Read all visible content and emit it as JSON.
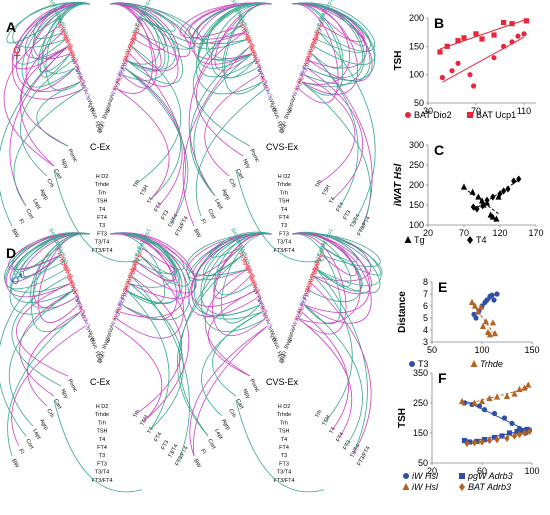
{
  "colors": {
    "teal": "#3aa88f",
    "magenta": "#cf3fc4",
    "red": "#e8253a",
    "purple": "#6a3fc8",
    "blue": "#2d4fa8",
    "orange_brown": "#b4621f",
    "female_symbol": "#d8253a",
    "male_symbol": "#2a63c8",
    "gray_text": "#333333"
  },
  "panels": {
    "A": {
      "letter": "A",
      "symbol": "♀",
      "left_caption": "C-Ex",
      "right_caption": "CVS-Ex"
    },
    "D": {
      "letter": "D",
      "symbol": "♂",
      "left_caption": "C-Ex",
      "right_caption": "CVS-Ex"
    }
  },
  "network_labels": {
    "right_arm": [
      "BATUcp1",
      "BAT Ar3",
      "BAT D2",
      "pgW Hsl",
      "pgW Ar3",
      "sW Ppar",
      "sW Ar3",
      "sW Hsl",
      "iW Ppar",
      "iW Ar3",
      "iW Hsl",
      "iW Ar3",
      "sW",
      "gW",
      "BWc",
      "Fl",
      "Dist"
    ],
    "left_arm": [
      "Pomc",
      "Npy",
      "Cart",
      "Crh",
      "Agrp",
      "Lept",
      "Cort",
      "Fl",
      "BW"
    ],
    "center_column": [
      "H D2",
      "Trhde",
      "Trh",
      "TSH",
      "T4",
      "FT4",
      "T3",
      "FT3",
      "T3/T4",
      "FT3/FT4"
    ],
    "right_stubs": [
      "Trh",
      "TSH",
      "T4",
      "FT4",
      "FT3",
      "T3/T4",
      "FT3/FT4"
    ]
  },
  "chart_data": [
    {
      "panel": "B",
      "type": "scatter",
      "xlabel": "",
      "ylabel": "TSH",
      "xlim": [
        30,
        120
      ],
      "ylim": [
        50,
        200
      ],
      "xticks": [
        30,
        70,
        110
      ],
      "yticks": [
        50,
        100,
        150,
        200
      ],
      "series": [
        {
          "name": "BAT Dio2",
          "marker": "circle",
          "color": "#e8253a",
          "points": [
            [
              42,
              95
            ],
            [
              50,
              107
            ],
            [
              55,
              120
            ],
            [
              65,
              100
            ],
            [
              68,
              80
            ],
            [
              85,
              130
            ],
            [
              93,
              150
            ],
            [
              100,
              158
            ],
            [
              105,
              168
            ],
            [
              110,
              172
            ]
          ]
        },
        {
          "name": "BAT Ucp1",
          "marker": "square",
          "color": "#e8253a",
          "points": [
            [
              40,
              140
            ],
            [
              46,
              150
            ],
            [
              55,
              160
            ],
            [
              60,
              165
            ],
            [
              70,
              172
            ],
            [
              75,
              163
            ],
            [
              85,
              170
            ],
            [
              93,
              192
            ],
            [
              100,
              190
            ],
            [
              112,
              195
            ]
          ]
        }
      ],
      "legend": [
        "BAT Dio2",
        "BAT Ucp1"
      ]
    },
    {
      "panel": "C",
      "type": "scatter",
      "xlabel": "",
      "ylabel": "iWAT Hsl",
      "xlim": [
        20,
        170
      ],
      "ylim": [
        100,
        300
      ],
      "xticks": [
        20,
        70,
        120,
        170
      ],
      "yticks": [
        100,
        150,
        200,
        250,
        300
      ],
      "series": [
        {
          "name": "Tg",
          "marker": "triangle",
          "color": "#000000",
          "points": [
            [
              70,
              195
            ],
            [
              82,
              182
            ],
            [
              90,
              170
            ],
            [
              95,
              160
            ],
            [
              97,
              150
            ],
            [
              102,
              155
            ],
            [
              107,
              125
            ],
            [
              110,
              120
            ],
            [
              115,
              115
            ],
            [
              118,
              170
            ]
          ]
        },
        {
          "name": "T4",
          "marker": "diamond",
          "color": "#000000",
          "points": [
            [
              83,
              145
            ],
            [
              88,
              140
            ],
            [
              96,
              148
            ],
            [
              102,
              162
            ],
            [
              110,
              170
            ],
            [
              120,
              178
            ],
            [
              125,
              185
            ],
            [
              131,
              190
            ],
            [
              139,
              210
            ],
            [
              146,
              215
            ]
          ]
        }
      ],
      "legend": [
        "Tg",
        "T4"
      ]
    },
    {
      "panel": "E",
      "type": "scatter",
      "xlabel": "",
      "ylabel": "Distance",
      "xlim": [
        50,
        150
      ],
      "ylim": [
        3,
        8
      ],
      "xticks": [
        50,
        100,
        150
      ],
      "yticks": [
        3,
        4,
        5,
        6,
        7,
        8
      ],
      "series": [
        {
          "name": "T3",
          "marker": "circle",
          "color": "#2d4fa8",
          "points": [
            [
              92,
              5.3
            ],
            [
              94,
              5.0
            ],
            [
              97,
              5.6
            ],
            [
              100,
              6.0
            ],
            [
              103,
              6.3
            ],
            [
              105,
              6.5
            ],
            [
              108,
              6.8
            ],
            [
              110,
              6.9
            ],
            [
              112,
              6.5
            ],
            [
              115,
              7.0
            ]
          ]
        },
        {
          "name": "Trhde",
          "marker": "triangle",
          "color": "#b4621f",
          "points": [
            [
              90,
              6.3
            ],
            [
              93,
              6.0
            ],
            [
              96,
              5.5
            ],
            [
              99,
              5.9
            ],
            [
              101,
              4.3
            ],
            [
              104,
              4.7
            ],
            [
              106,
              3.8
            ],
            [
              108,
              3.6
            ],
            [
              111,
              4.6
            ],
            [
              113,
              3.7
            ]
          ]
        }
      ],
      "legend": [
        "T3",
        "Trhde"
      ]
    },
    {
      "panel": "F",
      "type": "scatter",
      "xlabel": "",
      "ylabel": "TSH",
      "xlim": [
        20,
        100
      ],
      "ylim": [
        50,
        350
      ],
      "xticks": [
        20,
        60,
        100
      ],
      "yticks": [
        50,
        150,
        250,
        350
      ],
      "series": [
        {
          "name": "iW Hsl",
          "marker": "circle",
          "color": "#2d4fa8",
          "points": [
            [
              46,
              250
            ],
            [
              52,
              245
            ],
            [
              58,
              240
            ],
            [
              62,
              228
            ],
            [
              70,
              215
            ],
            [
              78,
              200
            ],
            [
              84,
              182
            ],
            [
              90,
              165
            ],
            [
              95,
              150
            ],
            [
              98,
              160
            ]
          ]
        },
        {
          "name": "pgW Adrb3",
          "marker": "square",
          "color": "#2d4fa8",
          "points": [
            [
              46,
              125
            ],
            [
              50,
              120
            ],
            [
              56,
              122
            ],
            [
              62,
              128
            ],
            [
              70,
              135
            ],
            [
              76,
              140
            ],
            [
              82,
              150
            ],
            [
              88,
              155
            ],
            [
              92,
              158
            ],
            [
              96,
              162
            ]
          ]
        },
        {
          "name": "iW Hsl",
          "marker": "triangle",
          "color": "#b4621f",
          "points": [
            [
              44,
              255
            ],
            [
              54,
              250
            ],
            [
              60,
              255
            ],
            [
              66,
              265
            ],
            [
              72,
              270
            ],
            [
              80,
              272
            ],
            [
              86,
              280
            ],
            [
              90,
              295
            ],
            [
              94,
              300
            ],
            [
              97,
              310
            ]
          ]
        },
        {
          "name": "BAT Adrb3",
          "marker": "diamond",
          "color": "#b4621f",
          "points": [
            [
              48,
              115
            ],
            [
              54,
              118
            ],
            [
              60,
              120
            ],
            [
              66,
              125
            ],
            [
              72,
              128
            ],
            [
              80,
              132
            ],
            [
              86,
              140
            ],
            [
              90,
              145
            ],
            [
              94,
              150
            ],
            [
              98,
              155
            ]
          ]
        }
      ],
      "legend": [
        "iW Hsl",
        "pgW Adrb3",
        "iW Hsl",
        "BAT Adrb3"
      ]
    }
  ]
}
